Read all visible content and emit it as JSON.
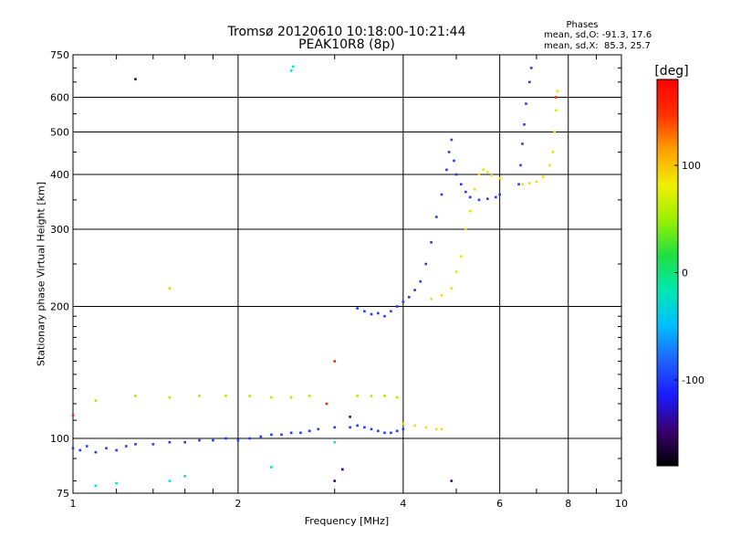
{
  "title": {
    "line1": "Tromsø 20120610 10:18:00-10:21:44",
    "line2": "PEAK10R8 (8p)"
  },
  "phases": {
    "heading": "Phases",
    "o_line": "mean, sd,O: -91.3, 17.6",
    "x_line": "mean, sd,X:  85.3, 25.7"
  },
  "colorbar": {
    "label": "[deg]",
    "ticks": [
      "100",
      "0",
      "-100"
    ],
    "range": [
      -180,
      180
    ],
    "colors": [
      "#000000",
      "#3a0070",
      "#1a1aff",
      "#1f62ff",
      "#00bfff",
      "#00e8b0",
      "#20e040",
      "#9af000",
      "#f0f000",
      "#ff9f00",
      "#ff3000",
      "#ff0000"
    ]
  },
  "chart_data": {
    "type": "scatter",
    "xlabel": "Frequency [MHz]",
    "ylabel": "Stationary phase Virtual Height [km]",
    "xscale": "log",
    "yscale": "log",
    "xlim": [
      1,
      10
    ],
    "ylim": [
      75,
      750
    ],
    "xticks": [
      "1",
      "2",
      "4",
      "6",
      "8",
      "10"
    ],
    "yticks": [
      "750",
      "600",
      "500",
      "400",
      "300",
      "200",
      "100",
      "75"
    ],
    "grid": true,
    "series": [
      {
        "color": "#1f3cff",
        "points": [
          [
            1.0,
            95
          ],
          [
            1.03,
            94
          ],
          [
            1.06,
            96
          ],
          [
            1.1,
            93
          ],
          [
            1.15,
            95
          ],
          [
            1.2,
            94
          ],
          [
            1.25,
            96
          ],
          [
            1.3,
            97
          ],
          [
            1.4,
            97
          ],
          [
            1.5,
            98
          ],
          [
            1.6,
            98
          ],
          [
            1.7,
            99
          ],
          [
            1.8,
            99
          ],
          [
            1.9,
            100
          ],
          [
            2.0,
            99
          ],
          [
            2.1,
            100
          ],
          [
            2.2,
            101
          ],
          [
            2.3,
            102
          ],
          [
            2.4,
            102
          ],
          [
            2.5,
            103
          ],
          [
            2.6,
            103
          ],
          [
            2.7,
            104
          ],
          [
            2.8,
            105
          ],
          [
            3.0,
            106
          ],
          [
            3.2,
            106
          ],
          [
            3.3,
            107
          ],
          [
            3.4,
            106
          ],
          [
            3.5,
            105
          ],
          [
            3.6,
            104
          ],
          [
            3.7,
            103
          ],
          [
            3.8,
            103
          ],
          [
            3.9,
            104
          ],
          [
            4.0,
            105
          ],
          [
            3.3,
            198
          ],
          [
            3.4,
            195
          ],
          [
            3.5,
            192
          ],
          [
            3.6,
            193
          ],
          [
            3.7,
            190
          ],
          [
            3.8,
            195
          ],
          [
            3.9,
            200
          ],
          [
            4.0,
            205
          ],
          [
            4.1,
            210
          ],
          [
            4.2,
            218
          ],
          [
            4.3,
            228
          ],
          [
            4.4,
            250
          ],
          [
            4.5,
            280
          ],
          [
            4.6,
            320
          ],
          [
            4.7,
            360
          ],
          [
            4.8,
            410
          ],
          [
            4.85,
            450
          ],
          [
            4.9,
            480
          ],
          [
            4.95,
            430
          ],
          [
            5.0,
            400
          ],
          [
            5.1,
            380
          ],
          [
            5.2,
            365
          ],
          [
            5.3,
            355
          ],
          [
            5.5,
            350
          ],
          [
            5.7,
            352
          ],
          [
            5.9,
            355
          ],
          [
            6.0,
            360
          ],
          [
            6.5,
            380
          ],
          [
            6.55,
            420
          ],
          [
            6.6,
            470
          ],
          [
            6.65,
            520
          ],
          [
            6.7,
            580
          ],
          [
            6.8,
            650
          ],
          [
            6.85,
            700
          ]
        ]
      },
      {
        "color": "#f0e000",
        "points": [
          [
            4.0,
            108
          ],
          [
            4.2,
            107
          ],
          [
            4.4,
            106
          ],
          [
            4.6,
            105
          ],
          [
            4.7,
            105
          ],
          [
            4.5,
            208
          ],
          [
            4.7,
            212
          ],
          [
            4.9,
            220
          ],
          [
            5.0,
            240
          ],
          [
            5.1,
            260
          ],
          [
            5.2,
            300
          ],
          [
            5.3,
            330
          ],
          [
            5.4,
            370
          ],
          [
            5.5,
            400
          ],
          [
            5.6,
            410
          ],
          [
            5.7,
            405
          ],
          [
            5.8,
            398
          ],
          [
            6.0,
            392
          ],
          [
            6.6,
            380
          ],
          [
            6.8,
            382
          ],
          [
            7.0,
            385
          ],
          [
            7.2,
            395
          ],
          [
            7.4,
            420
          ],
          [
            7.5,
            450
          ],
          [
            7.55,
            500
          ],
          [
            7.6,
            560
          ],
          [
            7.65,
            620
          ]
        ]
      },
      {
        "color": "#c8e000",
        "points": [
          [
            1.1,
            122
          ],
          [
            1.3,
            125
          ],
          [
            1.5,
            124
          ],
          [
            1.7,
            125
          ],
          [
            1.9,
            125
          ],
          [
            2.1,
            125
          ],
          [
            2.3,
            124
          ],
          [
            2.5,
            124
          ],
          [
            2.7,
            125
          ],
          [
            3.3,
            125
          ],
          [
            3.5,
            125
          ],
          [
            3.7,
            125
          ],
          [
            3.9,
            124
          ],
          [
            1.5,
            220
          ]
        ]
      },
      {
        "color": "#00e8c8",
        "points": [
          [
            2.5,
            690
          ],
          [
            2.52,
            705
          ],
          [
            1.1,
            78
          ],
          [
            1.2,
            79
          ],
          [
            1.5,
            80
          ],
          [
            1.6,
            82
          ],
          [
            2.3,
            86
          ],
          [
            3.0,
            98
          ]
        ]
      },
      {
        "color": "#ff2000",
        "points": [
          [
            7.6,
            600
          ],
          [
            3.0,
            150
          ],
          [
            2.9,
            120
          ],
          [
            1.0,
            113
          ]
        ]
      },
      {
        "color": "#3a0070",
        "points": [
          [
            1.3,
            660
          ],
          [
            4.9,
            80
          ],
          [
            3.0,
            80
          ],
          [
            3.2,
            112
          ],
          [
            3.1,
            85
          ]
        ]
      }
    ]
  }
}
